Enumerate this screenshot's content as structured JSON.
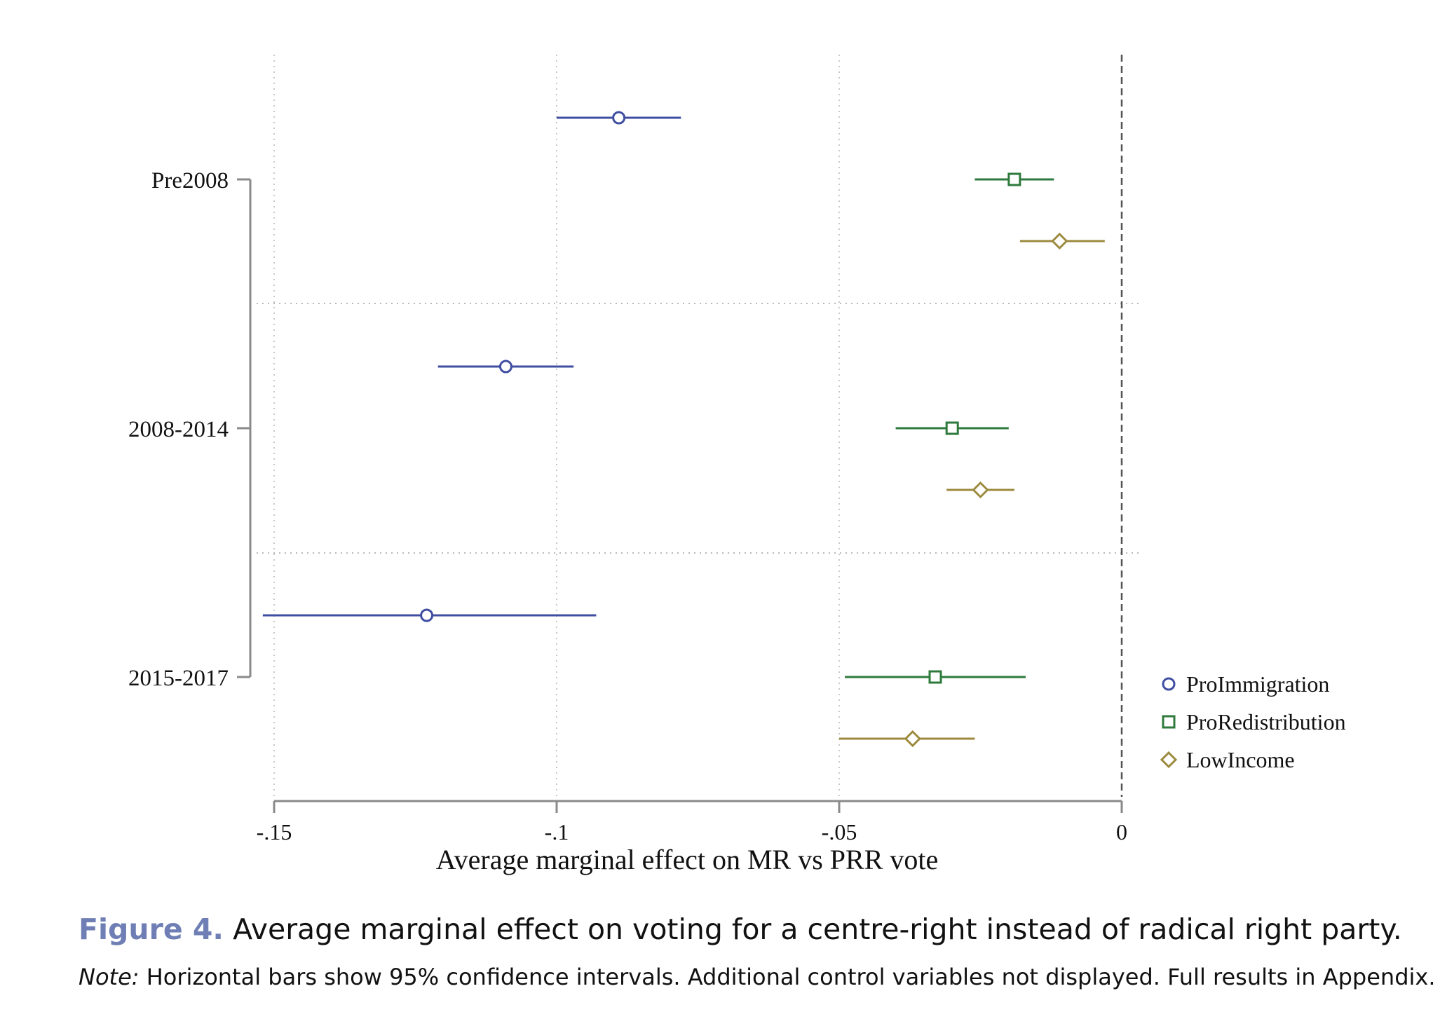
{
  "figure": {
    "label": "Figure 4.",
    "caption": "Average marginal effect on voting for a centre-right instead of radical right party.",
    "note_label": "Note:",
    "note_text": "Horizontal bars show 95% confidence intervals. Additional control variables not displayed. Full results in Appendix."
  },
  "chart_data": {
    "type": "scatter",
    "subtype": "coefficient plot with horizontal confidence intervals",
    "title": "",
    "xlabel": "Average marginal effect on MR vs PRR vote",
    "ylabel": "",
    "xlim": [
      -0.155,
      0.003
    ],
    "x_ticks": [
      -0.15,
      -0.1,
      -0.05,
      0
    ],
    "x_tick_labels": [
      "-.15",
      "-.1",
      "-.05",
      "0"
    ],
    "groups": [
      "Pre2008",
      "2008-2014",
      "2015-2017"
    ],
    "reference_line_x": 0,
    "grid": "vertical dotted at x ticks; horizontal dotted between groups",
    "legend_position": "right",
    "series": [
      {
        "name": "ProImmigration",
        "marker": "circle",
        "color": "#3f4ea1",
        "estimates": [
          -0.089,
          -0.109,
          -0.123
        ],
        "ci_low": [
          -0.1,
          -0.121,
          -0.152
        ],
        "ci_high": [
          -0.078,
          -0.097,
          -0.093
        ]
      },
      {
        "name": "ProRedistribution",
        "marker": "square",
        "color": "#2e7a3c",
        "estimates": [
          -0.019,
          -0.03,
          -0.033
        ],
        "ci_low": [
          -0.026,
          -0.04,
          -0.049
        ],
        "ci_high": [
          -0.012,
          -0.02,
          -0.017
        ]
      },
      {
        "name": "LowIncome",
        "marker": "diamond",
        "color": "#9c8a3e",
        "estimates": [
          -0.011,
          -0.025,
          -0.037
        ],
        "ci_low": [
          -0.018,
          -0.031,
          -0.05
        ],
        "ci_high": [
          -0.003,
          -0.019,
          -0.026
        ]
      }
    ]
  }
}
